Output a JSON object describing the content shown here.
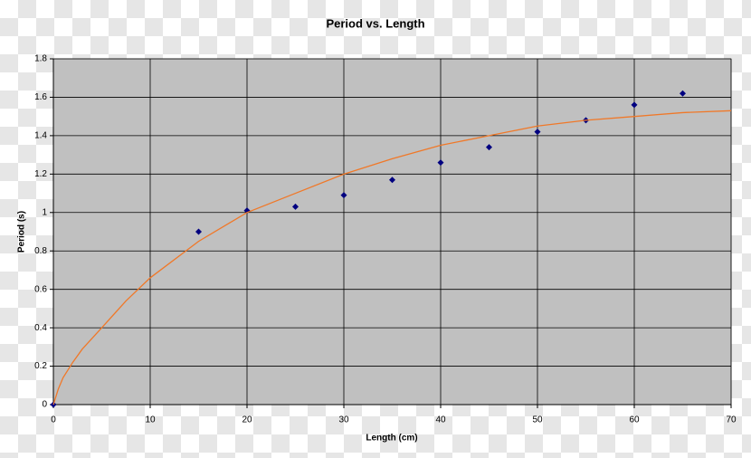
{
  "chart_data": {
    "type": "scatter",
    "title": "Period vs. Length",
    "x_label": "Length (cm)",
    "y_label": "Period (s)",
    "xlim": [
      0,
      70
    ],
    "xticks": [
      0,
      10,
      20,
      30,
      40,
      50,
      60,
      70
    ],
    "ylim": [
      0,
      1.8
    ],
    "yticks": [
      0,
      0.2,
      0.4,
      0.6,
      0.8,
      1,
      1.2,
      1.4,
      1.6,
      1.8
    ],
    "grid": true,
    "plot_background": "#c0c0c0",
    "series": [
      {
        "style": "markers",
        "marker": "diamond",
        "color": "#000080",
        "x": [
          0,
          15,
          20,
          25,
          30,
          35,
          40,
          45,
          50,
          55,
          60,
          65
        ],
        "values": [
          0,
          0.9,
          1.01,
          1.03,
          1.09,
          1.17,
          1.26,
          1.34,
          1.42,
          1.48,
          1.56,
          1.62
        ]
      },
      {
        "style": "line",
        "color": "#f07828",
        "x": [
          0,
          0.5,
          1,
          2,
          3,
          5,
          7.5,
          10,
          15,
          20,
          25,
          30,
          35,
          40,
          45,
          50,
          55,
          60,
          65,
          70
        ],
        "values": [
          0,
          0.08,
          0.14,
          0.22,
          0.29,
          0.4,
          0.54,
          0.66,
          0.85,
          1.0,
          1.1,
          1.2,
          1.28,
          1.35,
          1.4,
          1.45,
          1.48,
          1.5,
          1.52,
          1.53
        ]
      }
    ]
  }
}
